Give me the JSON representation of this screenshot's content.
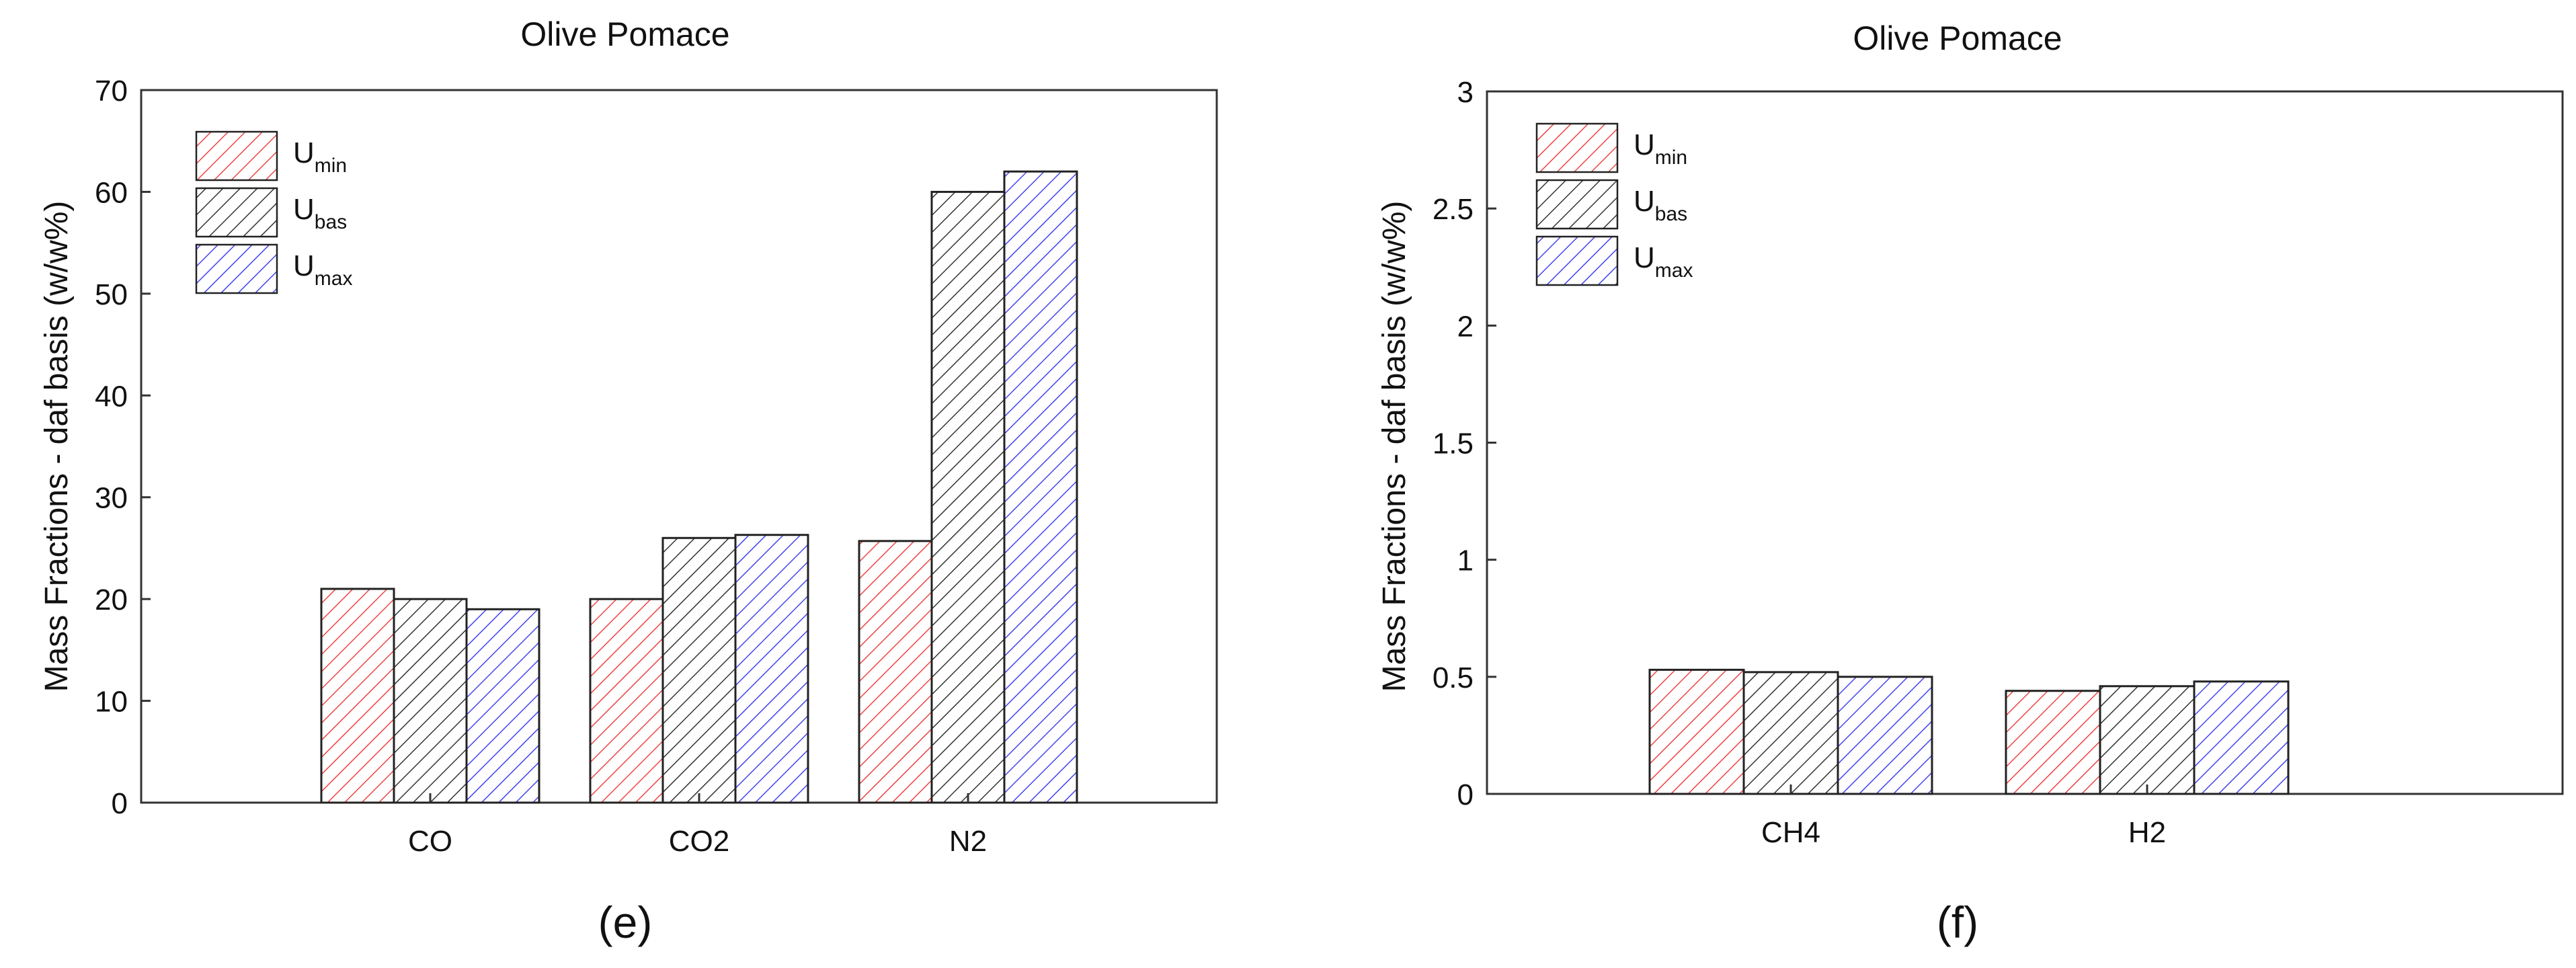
{
  "series_styles": [
    {
      "main": "U",
      "sub": "min",
      "color": "#ee4444",
      "hatch": "hatch-red"
    },
    {
      "main": "U",
      "sub": "bas",
      "color": "#333333",
      "hatch": "hatch-black"
    },
    {
      "main": "U",
      "sub": "max",
      "color": "#4444ee",
      "hatch": "hatch-blue"
    }
  ],
  "panels": [
    {
      "sublabel": "(e)"
    },
    {
      "sublabel": "(f)"
    }
  ],
  "chart_data": [
    {
      "type": "bar",
      "title": "Olive Pomace",
      "xlabel": "",
      "ylabel": "Mass Fractions - daf basis (w/w%)",
      "categories": [
        "CO",
        "CO2",
        "N2"
      ],
      "ylim": [
        0,
        70
      ],
      "yticks": [
        0,
        10,
        20,
        30,
        40,
        50,
        60,
        70
      ],
      "ytick_labels": [
        "0",
        "10",
        "20",
        "30",
        "40",
        "50",
        "60",
        "70"
      ],
      "grid": false,
      "legend_position": "top-left",
      "series": [
        {
          "name": "Umin",
          "values": [
            21,
            20,
            25.7
          ]
        },
        {
          "name": "Ubas",
          "values": [
            20,
            26,
            60
          ]
        },
        {
          "name": "Umax",
          "values": [
            19,
            26.3,
            62
          ]
        }
      ]
    },
    {
      "type": "bar",
      "title": "Olive Pomace",
      "xlabel": "",
      "ylabel": "Mass Fractions - daf basis (w/w%)",
      "categories": [
        "CH4",
        "H2"
      ],
      "ylim": [
        0,
        3
      ],
      "yticks": [
        0,
        0.5,
        1,
        1.5,
        2,
        2.5,
        3
      ],
      "ytick_labels": [
        "0",
        "0.5",
        "1",
        "1.5",
        "2",
        "2.5",
        "3"
      ],
      "grid": false,
      "legend_position": "top-left",
      "series": [
        {
          "name": "Umin",
          "values": [
            0.53,
            0.44
          ]
        },
        {
          "name": "Ubas",
          "values": [
            0.52,
            0.46
          ]
        },
        {
          "name": "Umax",
          "values": [
            0.5,
            0.48
          ]
        }
      ]
    }
  ]
}
